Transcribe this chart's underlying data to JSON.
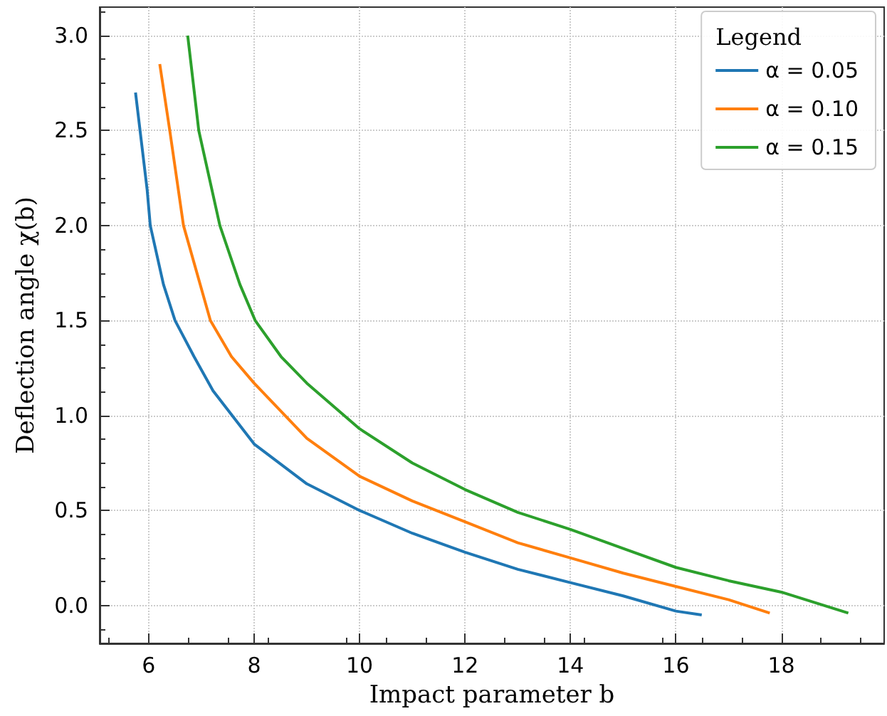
{
  "chart_data": {
    "type": "line",
    "xlabel": "Impact parameter b",
    "ylabel": "Deflection angle χ(b)",
    "legend_title": "Legend",
    "xlim": [
      5.07,
      19.95
    ],
    "ylim": [
      -0.2,
      3.15
    ],
    "xticks": [
      6,
      8,
      10,
      12,
      14,
      16,
      18
    ],
    "yticks": [
      {
        "value": 0,
        "label": "0.0"
      },
      {
        "value": 0.5,
        "label": "0.5"
      },
      {
        "value": 1,
        "label": "1.0"
      },
      {
        "value": 1.5,
        "label": "1.5"
      },
      {
        "value": 2,
        "label": "2.0"
      },
      {
        "value": 2.5,
        "label": "2.5"
      },
      {
        "value": 3,
        "label": "3.0"
      }
    ],
    "grid": true,
    "legend": "top right",
    "line_style": "solid",
    "marker": "none",
    "series": [
      {
        "name": "α = 0.05",
        "color": "#1f77b4",
        "x": [
          5.75,
          5.97,
          6.03,
          6.28,
          6.5,
          6.86,
          7.22,
          8,
          9,
          10,
          11,
          12,
          13,
          14,
          15,
          16,
          16.49
        ],
        "values": [
          2.7,
          2.19,
          2.0,
          1.69,
          1.5,
          1.31,
          1.13,
          0.85,
          0.64,
          0.5,
          0.38,
          0.28,
          0.19,
          0.12,
          0.05,
          -0.03,
          -0.05
        ]
      },
      {
        "name": "α = 0.10",
        "color": "#ff7f0e",
        "x": [
          6.21,
          6.4,
          6.66,
          7.17,
          7.57,
          8,
          9,
          10,
          11,
          12,
          13,
          14,
          15,
          16,
          17,
          17.78
        ],
        "values": [
          2.85,
          2.5,
          2.0,
          1.5,
          1.31,
          1.17,
          0.88,
          0.68,
          0.55,
          0.44,
          0.33,
          0.25,
          0.17,
          0.1,
          0.03,
          -0.04
        ]
      },
      {
        "name": "α = 0.15",
        "color": "#2ca02c",
        "x": [
          6.74,
          6.95,
          7.35,
          7.73,
          8.02,
          8.51,
          9,
          10,
          11,
          12,
          13,
          14,
          15,
          16,
          17,
          18,
          19.27
        ],
        "values": [
          3.0,
          2.5,
          2.0,
          1.69,
          1.5,
          1.31,
          1.17,
          0.93,
          0.75,
          0.61,
          0.49,
          0.4,
          0.3,
          0.2,
          0.13,
          0.07,
          -0.04
        ]
      }
    ]
  }
}
